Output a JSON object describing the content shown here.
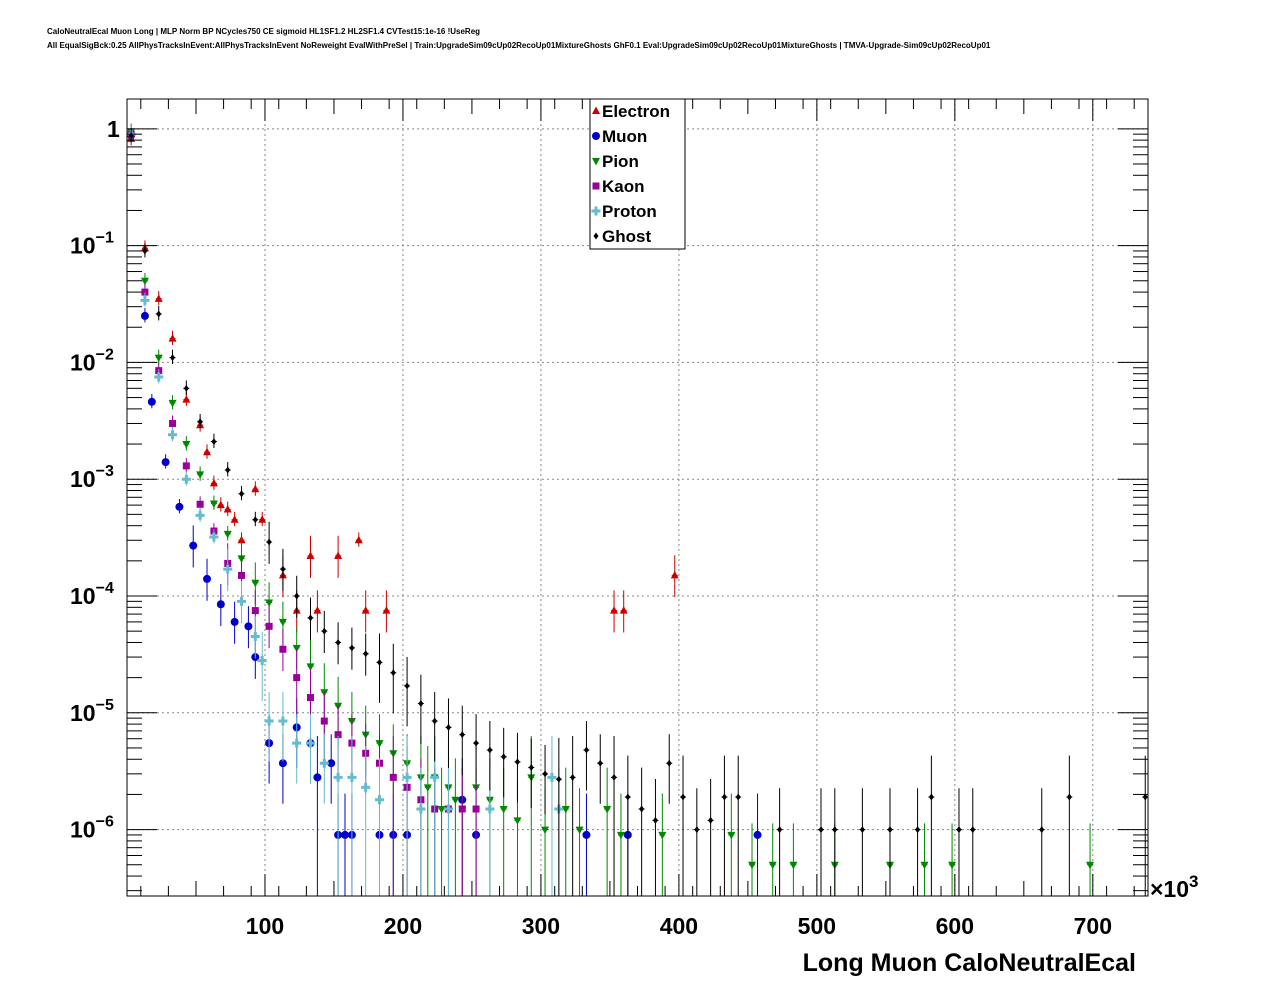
{
  "header": {
    "title_line1": "CaloNeutralEcal Muon Long | MLP Norm BP NCycles750 CE sigmoid HL1SF1.2 HL2SF1.4 CVTest15:1e-16 !UseReg",
    "title_line2": "All EqualSigBck:0.25 AllPhysTracksInEvent:AllPhysTracksInEvent NoReweight EvalWithPreSel | Train:UpgradeSim09cUp02RecoUp01MixtureGhosts GhF0.1 Eval:UpgradeSim09cUp02RecoUp01MixtureGhosts | TMVA-Upgrade-Sim09cUp02RecoUp01"
  },
  "chart_data": {
    "type": "scatter",
    "xlabel": "Long Muon CaloNeutralEcal",
    "ylabel": "",
    "x_multiplier_label": "×10",
    "x_multiplier_exp": "3",
    "xlim": [
      0,
      740
    ],
    "ylim": [
      2.7e-07,
      1.8
    ],
    "yscale": "log",
    "grid": true,
    "legend_placement": "top-center",
    "x_ticks": [
      {
        "value": 100,
        "label": "100"
      },
      {
        "value": 200,
        "label": "200"
      },
      {
        "value": 300,
        "label": "300"
      },
      {
        "value": 400,
        "label": "400"
      },
      {
        "value": 500,
        "label": "500"
      },
      {
        "value": 600,
        "label": "600"
      },
      {
        "value": 700,
        "label": "700"
      }
    ],
    "y_ticks": [
      {
        "value": 1,
        "mant": "1",
        "exp": ""
      },
      {
        "value": 0.1,
        "mant": "10",
        "exp": "−1"
      },
      {
        "value": 0.01,
        "mant": "10",
        "exp": "−2"
      },
      {
        "value": 0.001,
        "mant": "10",
        "exp": "−3"
      },
      {
        "value": 0.0001,
        "mant": "10",
        "exp": "−4"
      },
      {
        "value": 1e-05,
        "mant": "10",
        "exp": "−5"
      },
      {
        "value": 1e-06,
        "mant": "10",
        "exp": "−6"
      }
    ],
    "series": [
      {
        "name": "Electron",
        "color": "#cc0000",
        "marker": "triangle-up",
        "points": [
          [
            3,
            0.82
          ],
          [
            13,
            0.095
          ],
          [
            23,
            0.035
          ],
          [
            33,
            0.016
          ],
          [
            43,
            0.0048
          ],
          [
            53,
            0.0029
          ],
          [
            58,
            0.0017
          ],
          [
            63,
            0.00092
          ],
          [
            68,
            0.0006
          ],
          [
            73,
            0.00055
          ],
          [
            78,
            0.00045
          ],
          [
            83,
            0.0003
          ],
          [
            93,
            0.00082
          ],
          [
            98,
            0.00045
          ],
          [
            113,
            0.00015
          ],
          [
            123,
            7.5e-05
          ],
          [
            133,
            0.00022
          ],
          [
            138,
            7.5e-05
          ],
          [
            153,
            0.00022
          ],
          [
            168,
            0.0003
          ],
          [
            173,
            7.5e-05
          ],
          [
            188,
            7.5e-05
          ],
          [
            353,
            7.5e-05
          ],
          [
            360,
            7.5e-05
          ],
          [
            397,
            0.00015
          ]
        ]
      },
      {
        "name": "Muon",
        "color": "#0000cc",
        "marker": "circle",
        "points": [
          [
            3,
            0.88
          ],
          [
            13,
            0.025
          ],
          [
            18,
            0.0046
          ],
          [
            28,
            0.0014
          ],
          [
            38,
            0.00058
          ],
          [
            48,
            0.00027
          ],
          [
            58,
            0.00014
          ],
          [
            68,
            8.5e-05
          ],
          [
            78,
            6e-05
          ],
          [
            88,
            5.5e-05
          ],
          [
            93,
            3e-05
          ],
          [
            103,
            5.5e-06
          ],
          [
            113,
            3.7e-06
          ],
          [
            123,
            7.5e-06
          ],
          [
            133,
            5.5e-06
          ],
          [
            138,
            2.8e-06
          ],
          [
            148,
            3.7e-06
          ],
          [
            153,
            9e-07
          ],
          [
            158,
            9e-07
          ],
          [
            163,
            9e-07
          ],
          [
            183,
            9e-07
          ],
          [
            193,
            9e-07
          ],
          [
            203,
            9e-07
          ],
          [
            243,
            1.8e-06
          ],
          [
            253,
            9e-07
          ],
          [
            333,
            9e-07
          ],
          [
            363,
            9e-07
          ],
          [
            457,
            9e-07
          ]
        ]
      },
      {
        "name": "Pion",
        "color": "#008800",
        "marker": "triangle-down",
        "points": [
          [
            3,
            0.95
          ],
          [
            13,
            0.05
          ],
          [
            23,
            0.011
          ],
          [
            33,
            0.0045
          ],
          [
            43,
            0.002
          ],
          [
            53,
            0.0011
          ],
          [
            63,
            0.00062
          ],
          [
            73,
            0.00034
          ],
          [
            83,
            0.00021
          ],
          [
            93,
            0.00013
          ],
          [
            103,
            8.8e-05
          ],
          [
            113,
            6e-05
          ],
          [
            123,
            3.6e-05
          ],
          [
            133,
            2.5e-05
          ],
          [
            143,
            1.5e-05
          ],
          [
            153,
            1.15e-05
          ],
          [
            163,
            8.5e-06
          ],
          [
            173,
            6.5e-06
          ],
          [
            183,
            5.5e-06
          ],
          [
            193,
            4.5e-06
          ],
          [
            203,
            3.7e-06
          ],
          [
            213,
            2.8e-06
          ],
          [
            218,
            2.3e-06
          ],
          [
            223,
            2.8e-06
          ],
          [
            228,
            1.5e-06
          ],
          [
            233,
            2.3e-06
          ],
          [
            238,
            1.8e-06
          ],
          [
            243,
            1.5e-06
          ],
          [
            253,
            2.3e-06
          ],
          [
            263,
            1.8e-06
          ],
          [
            273,
            1.5e-06
          ],
          [
            283,
            1.2e-06
          ],
          [
            293,
            2.8e-06
          ],
          [
            303,
            1e-06
          ],
          [
            318,
            1.5e-06
          ],
          [
            328,
            1e-06
          ],
          [
            348,
            1.5e-06
          ],
          [
            358,
            9e-07
          ],
          [
            388,
            9e-07
          ],
          [
            438,
            9e-07
          ],
          [
            453,
            5e-07
          ],
          [
            468,
            5e-07
          ],
          [
            483,
            5e-07
          ],
          [
            513,
            5e-07
          ],
          [
            553,
            5e-07
          ],
          [
            578,
            5e-07
          ],
          [
            598,
            5e-07
          ],
          [
            698,
            5e-07
          ]
        ]
      },
      {
        "name": "Kaon",
        "color": "#990099",
        "marker": "square",
        "points": [
          [
            3,
            0.9
          ],
          [
            13,
            0.04
          ],
          [
            23,
            0.0085
          ],
          [
            33,
            0.003
          ],
          [
            43,
            0.0013
          ],
          [
            53,
            0.00061
          ],
          [
            63,
            0.00036
          ],
          [
            73,
            0.00019
          ],
          [
            83,
            0.00015
          ],
          [
            93,
            7.5e-05
          ],
          [
            103,
            5.5e-05
          ],
          [
            113,
            3.5e-05
          ],
          [
            123,
            2e-05
          ],
          [
            133,
            1.35e-05
          ],
          [
            143,
            8.5e-06
          ],
          [
            153,
            6.5e-06
          ],
          [
            163,
            5.5e-06
          ],
          [
            173,
            4.5e-06
          ],
          [
            183,
            3.7e-06
          ],
          [
            193,
            2.8e-06
          ],
          [
            203,
            2.3e-06
          ],
          [
            213,
            1.8e-06
          ],
          [
            223,
            1.5e-06
          ],
          [
            233,
            1.5e-06
          ],
          [
            243,
            1.5e-06
          ],
          [
            253,
            1.5e-06
          ]
        ]
      },
      {
        "name": "Proton",
        "color": "#66bbcc",
        "marker": "cross",
        "points": [
          [
            3,
            0.9
          ],
          [
            13,
            0.034
          ],
          [
            23,
            0.0075
          ],
          [
            33,
            0.0024
          ],
          [
            43,
            0.001
          ],
          [
            53,
            0.00049
          ],
          [
            63,
            0.00032
          ],
          [
            73,
            0.00017
          ],
          [
            83,
            9e-05
          ],
          [
            93,
            4.5e-05
          ],
          [
            98,
            2.8e-05
          ],
          [
            103,
            8.5e-06
          ],
          [
            113,
            8.5e-06
          ],
          [
            123,
            5.5e-06
          ],
          [
            133,
            5.5e-06
          ],
          [
            143,
            3.7e-06
          ],
          [
            153,
            2.8e-06
          ],
          [
            163,
            2.8e-06
          ],
          [
            173,
            2.3e-06
          ],
          [
            183,
            1.8e-06
          ],
          [
            203,
            2.8e-06
          ],
          [
            213,
            1.5e-06
          ],
          [
            223,
            2.8e-06
          ],
          [
            233,
            1.5e-06
          ],
          [
            263,
            1.5e-06
          ],
          [
            308,
            2.8e-06
          ],
          [
            313,
            1.5e-06
          ]
        ]
      },
      {
        "name": "Ghost",
        "color": "#000000",
        "marker": "diamond",
        "points": [
          [
            3,
            0.87
          ],
          [
            13,
            0.09
          ],
          [
            23,
            0.026
          ],
          [
            33,
            0.011
          ],
          [
            43,
            0.006
          ],
          [
            53,
            0.0031
          ],
          [
            63,
            0.0021
          ],
          [
            73,
            0.0012
          ],
          [
            83,
            0.00075
          ],
          [
            93,
            0.00045
          ],
          [
            103,
            0.00029
          ],
          [
            113,
            0.00017
          ],
          [
            123,
            0.0001
          ],
          [
            133,
            6.5e-05
          ],
          [
            143,
            5e-05
          ],
          [
            153,
            4e-05
          ],
          [
            163,
            3.6e-05
          ],
          [
            173,
            3.2e-05
          ],
          [
            183,
            2.7e-05
          ],
          [
            193,
            2.2e-05
          ],
          [
            203,
            1.7e-05
          ],
          [
            213,
            1.2e-05
          ],
          [
            223,
            8.5e-06
          ],
          [
            233,
            7.5e-06
          ],
          [
            243,
            6.5e-06
          ],
          [
            253,
            5.5e-06
          ],
          [
            263,
            4.8e-06
          ],
          [
            273,
            4.2e-06
          ],
          [
            283,
            3.8e-06
          ],
          [
            293,
            3.4e-06
          ],
          [
            303,
            3e-06
          ],
          [
            313,
            2.7e-06
          ],
          [
            323,
            2.8e-06
          ],
          [
            333,
            4.8e-06
          ],
          [
            343,
            3.7e-06
          ],
          [
            353,
            2.8e-06
          ],
          [
            363,
            1.9e-06
          ],
          [
            373,
            1.5e-06
          ],
          [
            383,
            1.2e-06
          ],
          [
            393,
            3.7e-06
          ],
          [
            403,
            1.9e-06
          ],
          [
            413,
            1e-06
          ],
          [
            423,
            1.2e-06
          ],
          [
            433,
            1.9e-06
          ],
          [
            443,
            1.9e-06
          ],
          [
            473,
            1e-06
          ],
          [
            503,
            1e-06
          ],
          [
            513,
            1e-06
          ],
          [
            533,
            1e-06
          ],
          [
            553,
            1e-06
          ],
          [
            573,
            1e-06
          ],
          [
            583,
            1.9e-06
          ],
          [
            603,
            1e-06
          ],
          [
            613,
            1e-06
          ],
          [
            663,
            1e-06
          ],
          [
            683,
            1.9e-06
          ],
          [
            738,
            1.9e-06
          ]
        ]
      }
    ]
  }
}
